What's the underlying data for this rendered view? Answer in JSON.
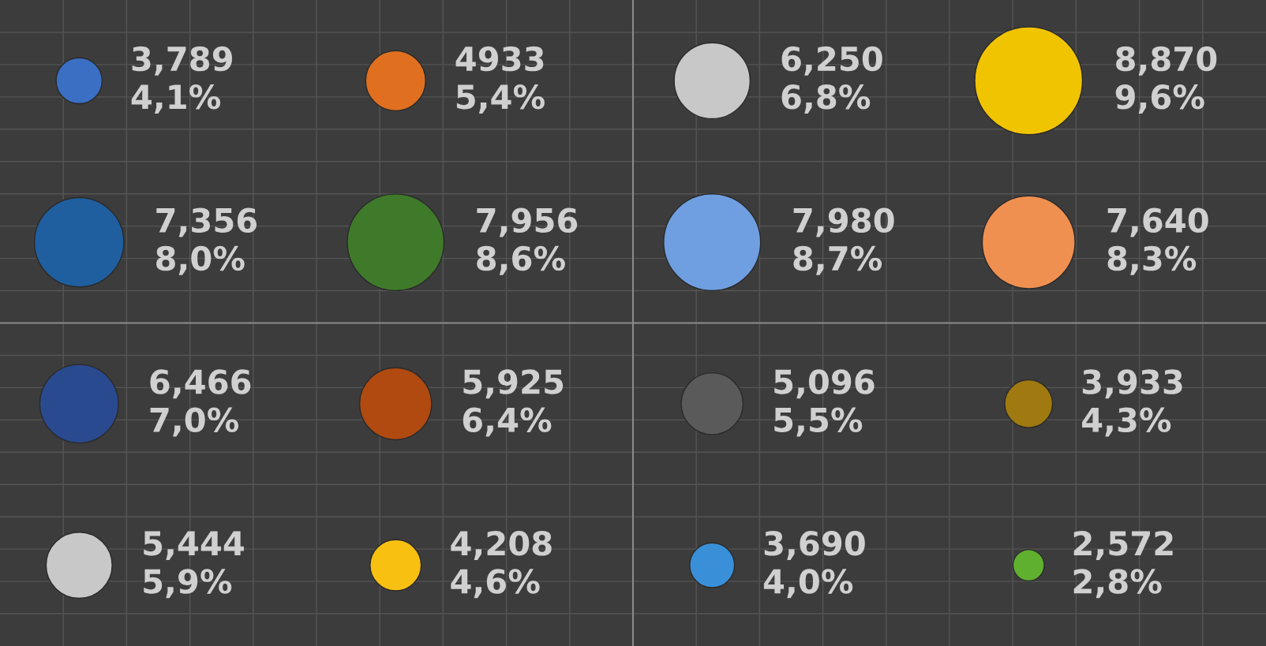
{
  "chart_data": {
    "type": "other",
    "categories": [
      null,
      null,
      null,
      null,
      null,
      null,
      null,
      null,
      null,
      null,
      null,
      null,
      null,
      null,
      null,
      null
    ],
    "values": [
      3789,
      4933,
      6250,
      8870,
      7356,
      7956,
      7980,
      7640,
      6466,
      5925,
      5096,
      3933,
      5444,
      4208,
      3690,
      2572
    ],
    "value_labels": [
      "3,789\n4,1%",
      "4933\n5,4%",
      "6,250\n6,8%",
      "8,870\n9,6%",
      "7,356\n8,0%",
      "7,956\n8,6%",
      "7,980\n8,7%",
      "7,640\n8,3%",
      "6,466\n7,0%",
      "5,925\n6,4%",
      "5,096\n5,5%",
      "3,933\n4,3%",
      "5,444\n5,9%",
      "4,208\n4,6%",
      "3,690\n4,0%",
      "2,572\n2,8%"
    ],
    "colors": [
      "#3a6fc4",
      "#e07020",
      "#c8c8c8",
      "#f0c400",
      "#1f5f9f",
      "#3f7a2a",
      "#6f9fe0",
      "#f09050",
      "#2a4a90",
      "#b04a10",
      "#5a5a5a",
      "#a07a10",
      "#c8c8c8",
      "#f8c010",
      "#3a90d8",
      "#60b030"
    ]
  }
}
